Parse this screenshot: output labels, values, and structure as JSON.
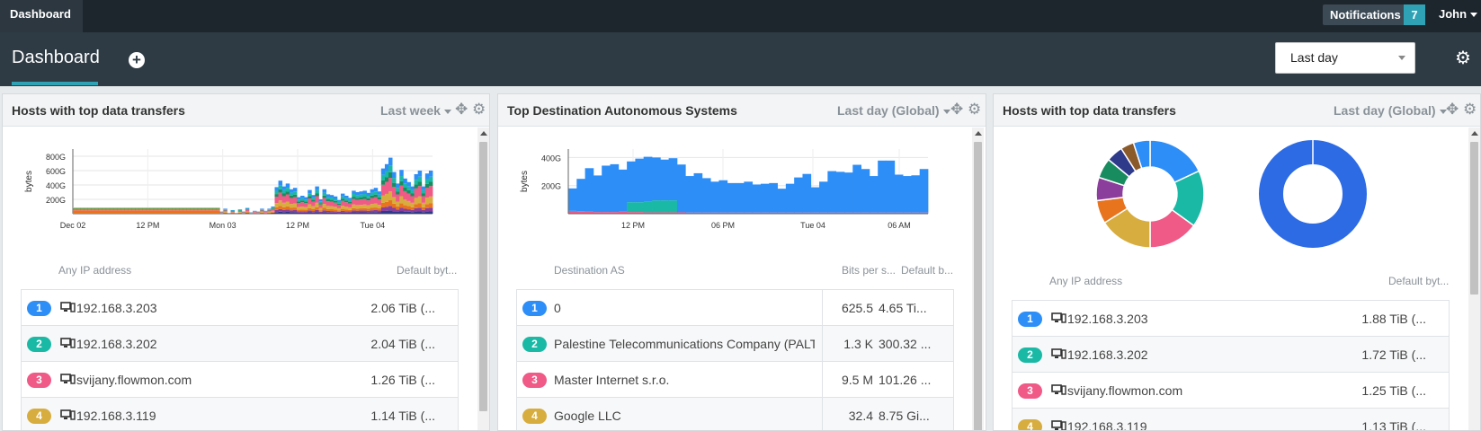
{
  "topbar": {
    "brand": "Dashboard",
    "notifications_label": "Notifications",
    "notifications_count": "7",
    "user": "John"
  },
  "header": {
    "tab_label": "Dashboard",
    "add_icon": "plus-circle-icon",
    "time_range": "Last day",
    "settings_icon": "gear-icon"
  },
  "colors": {
    "blue": "#2e8ef7",
    "teal": "#1ab9a6",
    "pink": "#ef5a87",
    "gold": "#d8ad3f",
    "orange": "#e8741e",
    "purple": "#8b3e9c",
    "green": "#198c5f",
    "navy": "#2e3b8b",
    "brown": "#8a5a2b",
    "donut2": "#2d6be5"
  },
  "panels": [
    {
      "title": "Hosts with top data transfers",
      "range": "Last week",
      "table_header": {
        "label": "Any IP address",
        "value": "Default byt..."
      },
      "rows": [
        {
          "rank": "1",
          "label": "192.168.3.203",
          "value": "2.06 TiB (..."
        },
        {
          "rank": "2",
          "label": "192.168.3.202",
          "value": "2.04 TiB (..."
        },
        {
          "rank": "3",
          "label": "svijany.flowmon.com",
          "value": "1.26 TiB (..."
        },
        {
          "rank": "4",
          "label": "192.168.3.119",
          "value": "1.14 TiB (..."
        }
      ]
    },
    {
      "title": "Top Destination Autonomous Systems",
      "range": "Last day (Global)",
      "table_header": {
        "label": "Destination AS",
        "bps": "Bits per s...",
        "value": "Default b..."
      },
      "rows": [
        {
          "rank": "1",
          "label": "0",
          "bps": "625.5",
          "value": "4.65 Ti..."
        },
        {
          "rank": "2",
          "label": "Palestine Telecommunications Company (PALTEL)",
          "bps": "1.3 K",
          "value": "300.32 ..."
        },
        {
          "rank": "3",
          "label": "Master Internet s.r.o.",
          "bps": "9.5 M",
          "value": "101.26 ..."
        },
        {
          "rank": "4",
          "label": "Google LLC",
          "bps": "32.4",
          "value": "8.75 Gi..."
        }
      ]
    },
    {
      "title": "Hosts with top data transfers",
      "range": "Last day (Global)",
      "table_header": {
        "label": "Any IP address",
        "value": "Default byt..."
      },
      "rows": [
        {
          "rank": "1",
          "label": "192.168.3.203",
          "value": "1.88 TiB (..."
        },
        {
          "rank": "2",
          "label": "192.168.3.202",
          "value": "1.72 TiB (..."
        },
        {
          "rank": "3",
          "label": "svijany.flowmon.com",
          "value": "1.25 TiB (..."
        },
        {
          "rank": "4",
          "label": "192.168.3.119",
          "value": "1.13 TiB (..."
        }
      ]
    }
  ],
  "chart_data": [
    {
      "type": "area",
      "ylabel": "bytes",
      "yticks": [
        "800G",
        "600G",
        "400G",
        "200G"
      ],
      "ytick_values": [
        800,
        600,
        400,
        200
      ],
      "ylim": [
        0,
        900
      ],
      "xticks": [
        "Dec 02",
        "12 PM",
        "Mon 03",
        "12 PM",
        "Tue 04"
      ],
      "xtick_positions": [
        0,
        0.25,
        0.5,
        0.75,
        1.0
      ],
      "x_span": [
        0,
        1.2
      ],
      "series_total": [
        85,
        85,
        85,
        85,
        85,
        85,
        85,
        85,
        85,
        85,
        85,
        85,
        85,
        85,
        85,
        85,
        85,
        85,
        85,
        85,
        85,
        85,
        85,
        85,
        85,
        85,
        85,
        85,
        85,
        85,
        85,
        85,
        85,
        85,
        85,
        85,
        85,
        85,
        85,
        85,
        30,
        70,
        10,
        50,
        10,
        60,
        30,
        80,
        20,
        40,
        30,
        70,
        40,
        70,
        100,
        370,
        460,
        380,
        420,
        340,
        360,
        230,
        250,
        230,
        330,
        260,
        380,
        200,
        340,
        270,
        260,
        240,
        190,
        280,
        250,
        220,
        320,
        300,
        310,
        320,
        290,
        340,
        360,
        310,
        630,
        690,
        780,
        580,
        420,
        610,
        490,
        440,
        380,
        550,
        600,
        380,
        560,
        600
      ]
    },
    {
      "type": "area",
      "ylabel": "bytes",
      "yticks": [
        "400G",
        "200G"
      ],
      "ytick_values": [
        400,
        200
      ],
      "ylim": [
        0,
        460
      ],
      "xticks": [
        "12 PM",
        "06 PM",
        "Tue 04",
        "06 AM"
      ],
      "xtick_positions": [
        0.18,
        0.43,
        0.68,
        0.92
      ],
      "series": [
        {
          "name": "blue",
          "values": [
            160,
            230,
            310,
            260,
            330,
            340,
            300,
            290,
            310,
            320,
            305,
            290,
            300,
            340,
            260,
            280,
            245,
            220,
            230,
            210,
            210,
            220,
            200,
            205,
            210,
            170,
            205,
            250,
            275,
            180,
            220,
            295,
            290,
            285,
            340,
            310,
            260,
            370,
            370,
            270,
            260,
            265,
            310
          ]
        },
        {
          "name": "teal",
          "values": [
            0,
            0,
            0,
            0,
            0,
            0,
            0,
            70,
            70,
            75,
            85,
            85,
            85,
            0,
            0,
            0,
            0,
            0,
            0,
            0,
            0,
            0,
            0,
            0,
            0,
            0,
            0,
            0,
            0,
            0,
            0,
            0,
            0,
            0,
            0,
            0,
            0,
            0,
            0,
            0,
            0,
            0,
            0
          ]
        },
        {
          "name": "pink",
          "values": [
            20,
            18,
            14,
            12,
            12,
            12,
            14,
            12,
            12,
            10,
            10,
            10,
            10,
            10,
            8,
            8,
            8,
            8,
            8,
            8,
            8,
            8,
            8,
            8,
            8,
            8,
            8,
            8,
            8,
            8,
            8,
            8,
            8,
            8,
            8,
            8,
            8,
            8,
            8,
            8,
            8,
            8,
            8
          ]
        }
      ]
    },
    {
      "type": "pie",
      "slices": [
        {
          "name": "blue",
          "value": 18
        },
        {
          "name": "teal",
          "value": 17
        },
        {
          "name": "pink",
          "value": 15
        },
        {
          "name": "gold",
          "value": 16
        },
        {
          "name": "orange",
          "value": 7
        },
        {
          "name": "purple",
          "value": 7
        },
        {
          "name": "green",
          "value": 6
        },
        {
          "name": "navy",
          "value": 5
        },
        {
          "name": "brown",
          "value": 4
        },
        {
          "name": "blue",
          "value": 5
        }
      ]
    },
    {
      "type": "pie",
      "slices": [
        {
          "name": "donut2",
          "value": 100
        }
      ]
    }
  ]
}
